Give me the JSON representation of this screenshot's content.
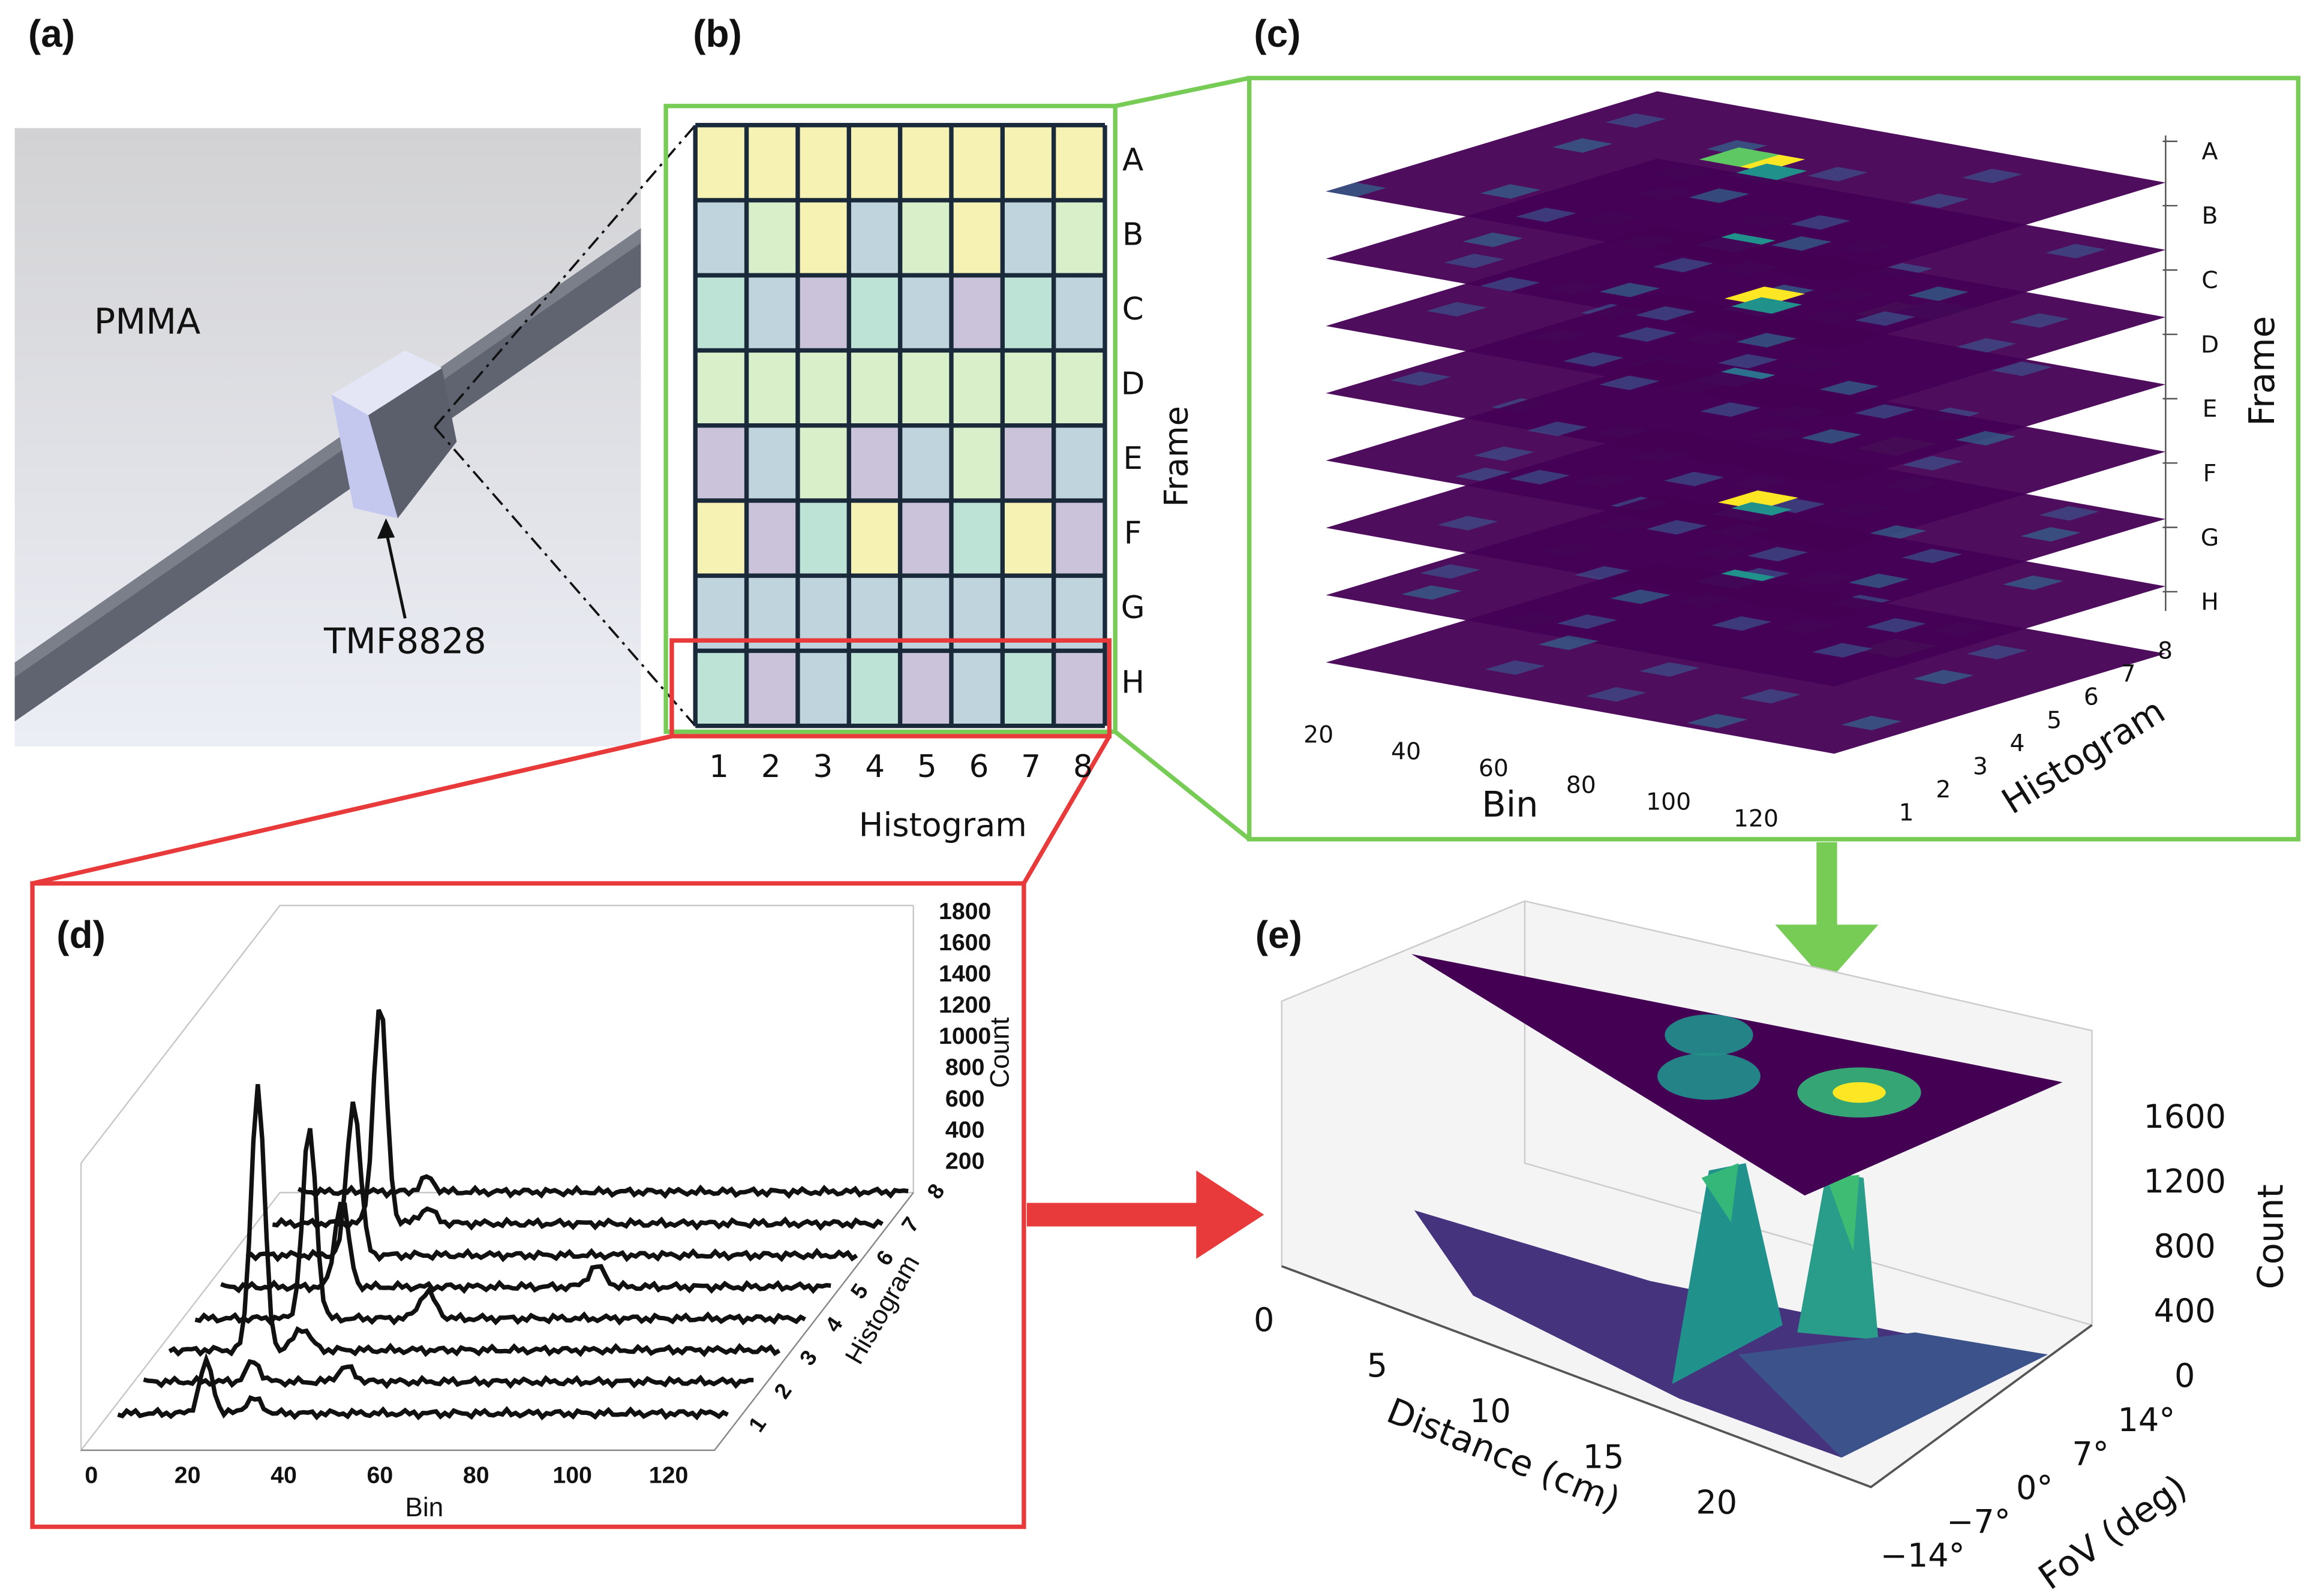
{
  "panels": {
    "a": {
      "label": "(a)",
      "material": "PMMA",
      "sensor": "TMF8828"
    },
    "b": {
      "label": "(b)",
      "rows": [
        "A",
        "B",
        "C",
        "D",
        "E",
        "F",
        "G",
        "H"
      ],
      "columns": [
        1,
        2,
        3,
        4,
        5,
        6,
        7,
        8
      ],
      "x_label": "Histogram",
      "y_label": "Frame"
    },
    "c": {
      "label": "(c)",
      "bin_ticks": [
        20,
        40,
        60,
        80,
        100,
        120
      ],
      "histogram_ticks": [
        1,
        2,
        3,
        4,
        5,
        6,
        7,
        8
      ],
      "frames": [
        "A",
        "B",
        "C",
        "D",
        "E",
        "F",
        "G",
        "H"
      ],
      "x_label": "Bin",
      "y_label": "Histogram",
      "z_label": "Frame"
    },
    "d": {
      "label": "(d)",
      "count_ticks": [
        1800,
        1600,
        1400,
        1200,
        1000,
        800,
        600,
        400,
        200
      ],
      "bin_ticks": [
        0,
        20,
        40,
        60,
        80,
        100,
        120
      ],
      "histogram_ticks": [
        1,
        2,
        3,
        4,
        5,
        6,
        7,
        8
      ],
      "x_label": "Bin",
      "y_label": "Histogram",
      "z_label": "Count"
    },
    "e": {
      "label": "(e)",
      "count_ticks": [
        1600,
        1200,
        800,
        400,
        0
      ],
      "distance_ticks": [
        0,
        5,
        10,
        15,
        20
      ],
      "fov_ticks": [
        "−14°",
        "−7°",
        "0°",
        "7°",
        "14°"
      ],
      "x_label": "Distance (cm)",
      "y_label": "FoV (deg)",
      "z_label": "Count"
    }
  }
}
